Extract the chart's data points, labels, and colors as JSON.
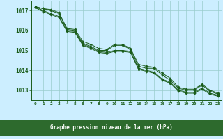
{
  "title": "Graphe pression niveau de la mer (hPa)",
  "background_color": "#cceeff",
  "grid_color": "#99cccc",
  "line_color": "#1a5c1a",
  "xlabel_bg": "#2d6a2d",
  "xlabel_fg": "#ffffff",
  "xlim": [
    -0.5,
    23.5
  ],
  "ylim": [
    1012.5,
    1017.5
  ],
  "yticks": [
    1013,
    1014,
    1015,
    1016,
    1017
  ],
  "xticks": [
    0,
    1,
    2,
    3,
    4,
    5,
    6,
    7,
    8,
    9,
    10,
    11,
    12,
    13,
    14,
    15,
    16,
    17,
    18,
    19,
    20,
    21,
    22,
    23
  ],
  "series": [
    [
      1017.2,
      1017.1,
      1017.05,
      1016.9,
      1016.1,
      1016.05,
      1015.45,
      1015.3,
      1015.1,
      1015.05,
      1015.3,
      1015.3,
      1015.1,
      1014.3,
      1014.2,
      1014.15,
      1013.85,
      1013.6,
      1013.15,
      1013.05,
      1013.05,
      1013.3,
      1013.0,
      1012.85
    ],
    [
      1017.2,
      1017.1,
      1017.0,
      1016.85,
      1016.05,
      1016.0,
      1015.35,
      1015.2,
      1015.0,
      1015.0,
      1015.25,
      1015.25,
      1015.05,
      1014.2,
      1014.1,
      1014.1,
      1013.75,
      1013.5,
      1013.1,
      1013.0,
      1013.0,
      1013.25,
      1012.95,
      1012.8
    ],
    [
      1017.2,
      1017.0,
      1016.85,
      1016.7,
      1016.0,
      1015.95,
      1015.3,
      1015.15,
      1014.95,
      1014.9,
      1015.0,
      1015.0,
      1014.95,
      1014.1,
      1014.0,
      1013.9,
      1013.55,
      1013.4,
      1013.0,
      1012.9,
      1012.9,
      1013.1,
      1012.85,
      1012.75
    ],
    [
      1017.15,
      1016.95,
      1016.8,
      1016.65,
      1015.95,
      1015.9,
      1015.25,
      1015.1,
      1014.9,
      1014.85,
      1014.95,
      1014.95,
      1014.9,
      1014.05,
      1013.95,
      1013.85,
      1013.5,
      1013.35,
      1012.95,
      1012.85,
      1012.85,
      1013.05,
      1012.8,
      1012.7
    ]
  ]
}
